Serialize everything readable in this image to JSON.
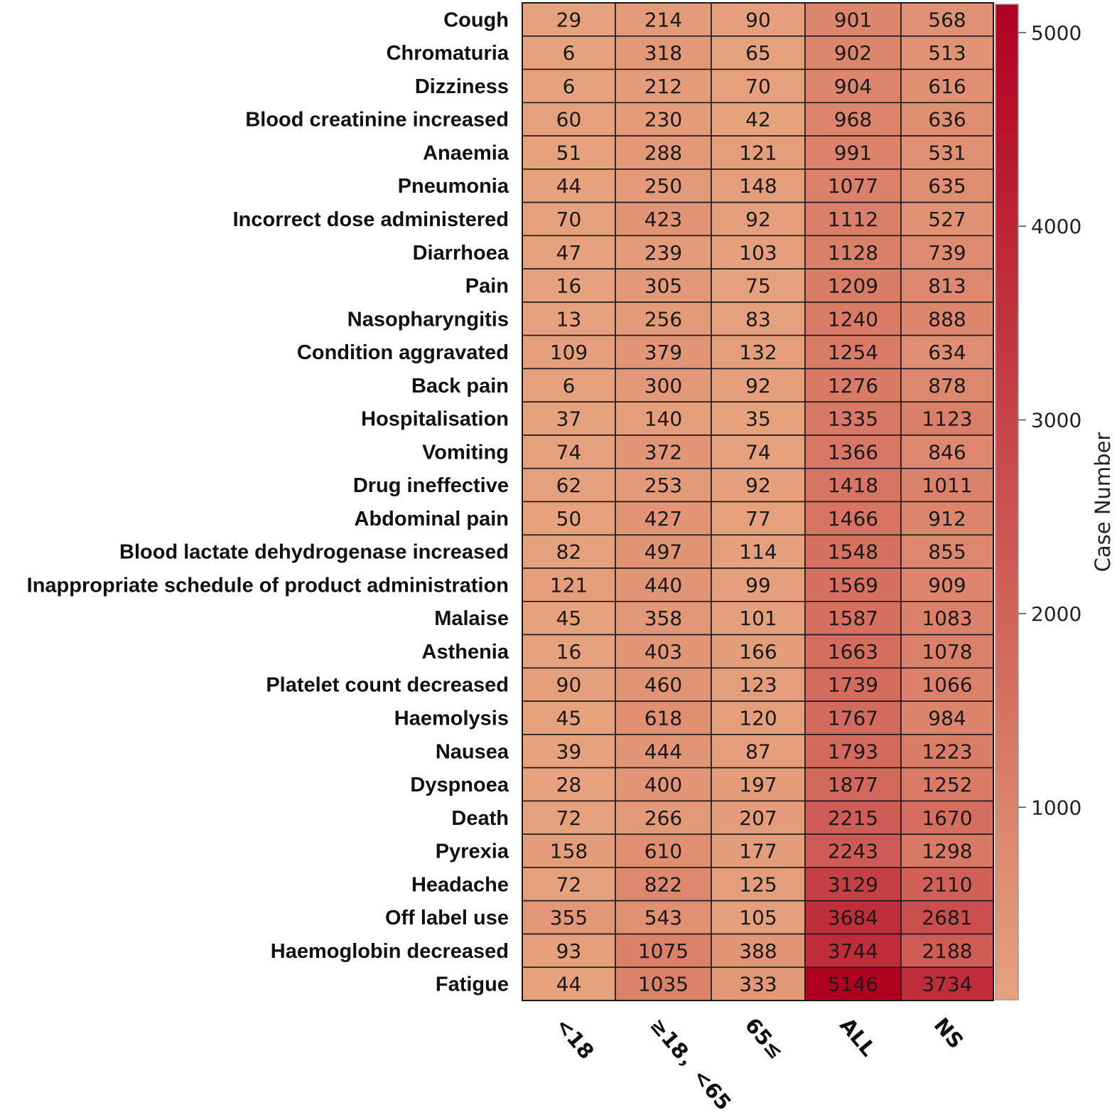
{
  "chart_data": {
    "type": "heatmap",
    "title": "",
    "columns": [
      "<18",
      "≥18，<65",
      "65≤",
      "ALL",
      "NS"
    ],
    "rows": [
      "Cough",
      "Chromaturia",
      "Dizziness",
      "Blood creatinine increased",
      "Anaemia",
      "Pneumonia",
      "Incorrect dose administered",
      "Diarrhoea",
      "Pain",
      "Nasopharyngitis",
      "Condition aggravated",
      "Back pain",
      "Hospitalisation",
      "Vomiting",
      "Drug ineffective",
      "Abdominal pain",
      "Blood lactate dehydrogenase increased",
      "Inappropriate schedule of product administration",
      "Malaise",
      "Asthenia",
      "Platelet count decreased",
      "Haemolysis",
      "Nausea",
      "Dyspnoea",
      "Death",
      "Pyrexia",
      "Headache",
      "Off label use",
      "Haemoglobin decreased",
      "Fatigue"
    ],
    "values": [
      [
        29,
        214,
        90,
        901,
        568
      ],
      [
        6,
        318,
        65,
        902,
        513
      ],
      [
        6,
        212,
        70,
        904,
        616
      ],
      [
        60,
        230,
        42,
        968,
        636
      ],
      [
        51,
        288,
        121,
        991,
        531
      ],
      [
        44,
        250,
        148,
        1077,
        635
      ],
      [
        70,
        423,
        92,
        1112,
        527
      ],
      [
        47,
        239,
        103,
        1128,
        739
      ],
      [
        16,
        305,
        75,
        1209,
        813
      ],
      [
        13,
        256,
        83,
        1240,
        888
      ],
      [
        109,
        379,
        132,
        1254,
        634
      ],
      [
        6,
        300,
        92,
        1276,
        878
      ],
      [
        37,
        140,
        35,
        1335,
        1123
      ],
      [
        74,
        372,
        74,
        1366,
        846
      ],
      [
        62,
        253,
        92,
        1418,
        1011
      ],
      [
        50,
        427,
        77,
        1466,
        912
      ],
      [
        82,
        497,
        114,
        1548,
        855
      ],
      [
        121,
        440,
        99,
        1569,
        909
      ],
      [
        45,
        358,
        101,
        1587,
        1083
      ],
      [
        16,
        403,
        166,
        1663,
        1078
      ],
      [
        90,
        460,
        123,
        1739,
        1066
      ],
      [
        45,
        618,
        120,
        1767,
        984
      ],
      [
        39,
        444,
        87,
        1793,
        1223
      ],
      [
        28,
        400,
        197,
        1877,
        1252
      ],
      [
        72,
        266,
        207,
        2215,
        1670
      ],
      [
        158,
        610,
        177,
        2243,
        1298
      ],
      [
        72,
        822,
        125,
        3129,
        2110
      ],
      [
        355,
        543,
        105,
        3684,
        2681
      ],
      [
        93,
        1075,
        388,
        3744,
        2188
      ],
      [
        44,
        1035,
        333,
        5146,
        3734
      ]
    ],
    "colorbar": {
      "title": "Case Number",
      "ticks": [
        1000,
        2000,
        3000,
        4000,
        5000
      ],
      "range": [
        6,
        5146
      ],
      "color_low": "#e6a27e",
      "color_high": "#b00020"
    }
  }
}
